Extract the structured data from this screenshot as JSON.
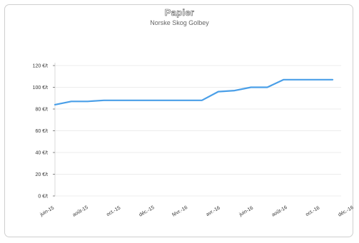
{
  "chart_data": {
    "type": "line",
    "title": "Papier",
    "subtitle": "Norske Skog Golbey",
    "xlabel": "",
    "ylabel": "",
    "y_unit": "€/t",
    "ylim": [
      0,
      120
    ],
    "y_ticks": [
      "0 €/t",
      "20 €/t",
      "40 €/t",
      "60 €/t",
      "80 €/t",
      "100 €/t",
      "120 €/t"
    ],
    "x_tick_labels": [
      "juin-15",
      "août-15",
      "oct.-15",
      "déc.-15",
      "févr.-16",
      "avr.-16",
      "juin-16",
      "août-16",
      "oct.-16",
      "déc.-16"
    ],
    "grid": true,
    "line_color": "#4a9fe8",
    "series": [
      {
        "x": [
          "juin-15",
          "juil.-15",
          "août-15",
          "sept.-15",
          "oct.-15",
          "nov.-15",
          "déc.-15",
          "janv.-16",
          "févr.-16",
          "mars-16",
          "avr.-16",
          "mai-16",
          "juin-16",
          "juil.-16",
          "août-16",
          "sept.-16",
          "oct.-16",
          "nov.-16"
        ],
        "values": [
          84,
          87,
          87,
          88,
          88,
          88,
          88,
          88,
          88,
          88,
          96,
          97,
          100,
          100,
          107,
          107,
          107,
          107
        ]
      }
    ]
  }
}
